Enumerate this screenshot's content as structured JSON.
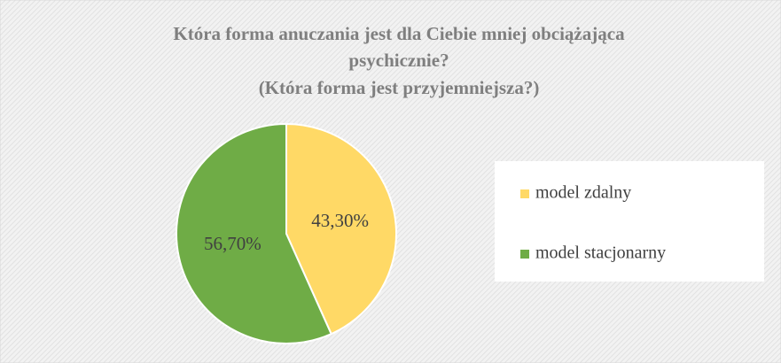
{
  "chart_data": {
    "type": "pie",
    "title": [
      "Która forma anuczania jest dla Ciebie mniej obciążająca",
      "psychicznie?",
      "(Która forma jest przyjemniejsza?)"
    ],
    "categories": [
      "model zdalny",
      "model stacjonarny"
    ],
    "values": [
      43.3,
      56.7
    ],
    "value_labels": [
      "43,30%",
      "56,70%"
    ],
    "colors": [
      "#ffd966",
      "#6fac46"
    ],
    "legend": "right"
  }
}
